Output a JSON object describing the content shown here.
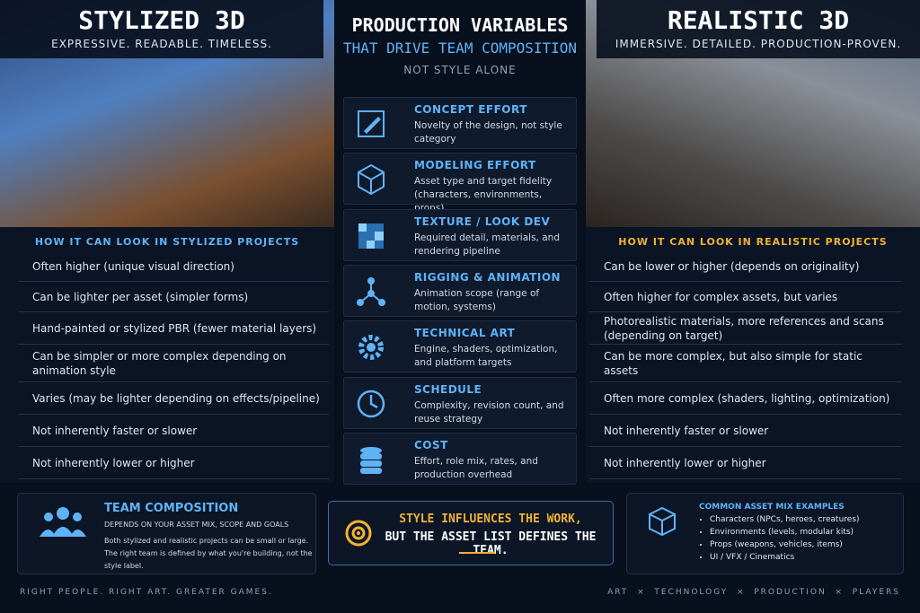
{
  "left": {
    "title": "STYLIZED 3D",
    "tagline": "EXPRESSIVE. READABLE. TIMELESS.",
    "section": "HOW IT CAN LOOK IN STYLIZED PROJECTS",
    "rows": [
      "Often higher (unique visual direction)",
      "Can be lighter per asset (simpler forms)",
      "Hand-painted or stylized PBR (fewer material layers)",
      "Can be simpler or more complex depending on animation style",
      "Varies (may be lighter depending on effects/pipeline)",
      "Not inherently faster or slower",
      "Not inherently lower or higher"
    ]
  },
  "center": {
    "title": "PRODUCTION VARIABLES",
    "subtitle": "THAT DRIVE TEAM COMPOSITION",
    "note": "NOT STYLE ALONE",
    "variables": [
      {
        "title": "CONCEPT EFFORT",
        "desc": "Novelty of the design, not style category"
      },
      {
        "title": "MODELING EFFORT",
        "desc": "Asset type and target fidelity (characters, environments, props)"
      },
      {
        "title": "TEXTURE / LOOK DEV",
        "desc": "Required detail, materials, and rendering pipeline"
      },
      {
        "title": "RIGGING & ANIMATION",
        "desc": "Animation scope (range of motion, systems)"
      },
      {
        "title": "TECHNICAL ART",
        "desc": "Engine, shaders, optimization, and platform targets"
      },
      {
        "title": "SCHEDULE",
        "desc": "Complexity, revision count, and reuse strategy"
      },
      {
        "title": "COST",
        "desc": "Effort, role mix, rates, and production overhead"
      }
    ]
  },
  "right": {
    "title": "REALISTIC 3D",
    "tagline": "IMMERSIVE. DETAILED. PRODUCTION-PROVEN.",
    "section": "HOW IT CAN LOOK IN REALISTIC PROJECTS",
    "rows": [
      "Can be lower or higher (depends on originality)",
      "Often higher for complex assets, but varies",
      "Photorealistic materials, more references and scans (depending on target)",
      "Can be more complex, but also simple for static assets",
      "Often more complex (shaders, lighting, optimization)",
      "Not inherently faster or slower",
      "Not inherently lower or higher"
    ]
  },
  "team": {
    "title": "TEAM COMPOSITION",
    "subtitle": "DEPENDS ON YOUR ASSET MIX, SCOPE AND GOALS",
    "body": [
      "Both stylized and realistic projects can be small or large.",
      "The right team is defined by what you're building, not the style label."
    ]
  },
  "quote": {
    "line1": "STYLE INFLUENCES THE WORK,",
    "line2": "BUT THE ASSET LIST DEFINES THE TEAM."
  },
  "assets": {
    "title": "COMMON ASSET MIX EXAMPLES",
    "items": [
      "Characters (NPCs, heroes, creatures)",
      "Environments (levels, modular kits)",
      "Props (weapons, vehicles, items)",
      "UI / VFX / Cinematics"
    ]
  },
  "footer": {
    "left": "RIGHT PEOPLE. RIGHT ART. GREATER GAMES.",
    "right": "ART  ×  TECHNOLOGY  ×  PRODUCTION  ×  PLAYERS"
  }
}
